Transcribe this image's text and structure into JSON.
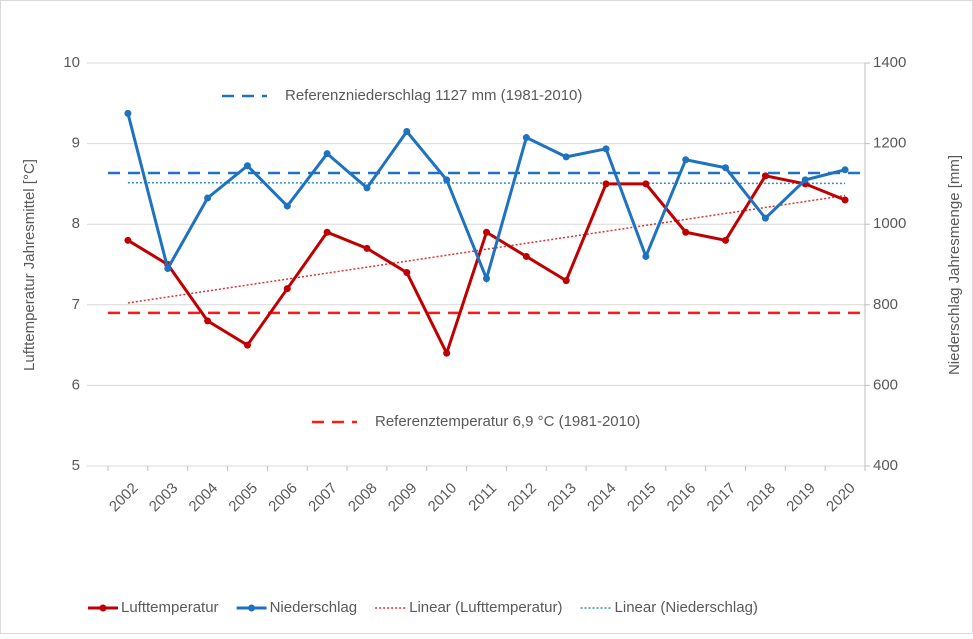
{
  "chart_data": {
    "type": "line",
    "categories": [
      "2002",
      "2003",
      "2004",
      "2005",
      "2006",
      "2007",
      "2008",
      "2009",
      "2010",
      "2011",
      "2012",
      "2013",
      "2014",
      "2015",
      "2016",
      "2017",
      "2018",
      "2019",
      "2020"
    ],
    "series": [
      {
        "name": "Lufttemperatur",
        "color": "#c00000",
        "values": [
          7.8,
          7.5,
          6.8,
          6.5,
          7.2,
          7.9,
          7.7,
          7.4,
          6.4,
          7.9,
          7.6,
          7.3,
          8.5,
          8.5,
          7.9,
          7.8,
          8.6,
          8.5,
          8.3
        ],
        "trendline": {
          "name": "Linear (Lufttemperatur)",
          "color": "#e03030"
        }
      },
      {
        "name": "Niederschlag",
        "color": "#1f72c0",
        "axis": "y2",
        "values": [
          1275,
          890,
          1065,
          1145,
          1045,
          1175,
          1090,
          1230,
          1110,
          865,
          1215,
          1167,
          1187,
          920,
          1160,
          1140,
          1015,
          1110,
          1135
        ],
        "trendline": {
          "name": "Linear (Niederschlag)",
          "color": "#2e8bd0"
        }
      }
    ],
    "reference_lines": [
      {
        "label": "Referenzniederschlag  1127 mm (1981-2010)",
        "value": 1127,
        "axis": "y2",
        "color": "#1f72c0"
      },
      {
        "label": "Referenztemperatur  6,9 °C (1981-2010)",
        "value": 6.9,
        "axis": "y",
        "color": "#ff1a1a"
      }
    ],
    "ylabel": "Lufttemperatur Jahresmittel [°C]",
    "y2label": "Niederschlag Jahresmenge [mm]",
    "ylim": [
      5,
      10
    ],
    "yticks": [
      5,
      6,
      7,
      8,
      9,
      10
    ],
    "y2lim": [
      400,
      1400
    ],
    "y2ticks": [
      400,
      600,
      800,
      1000,
      1200,
      1400
    ],
    "grid": true,
    "legend": "bottom"
  }
}
